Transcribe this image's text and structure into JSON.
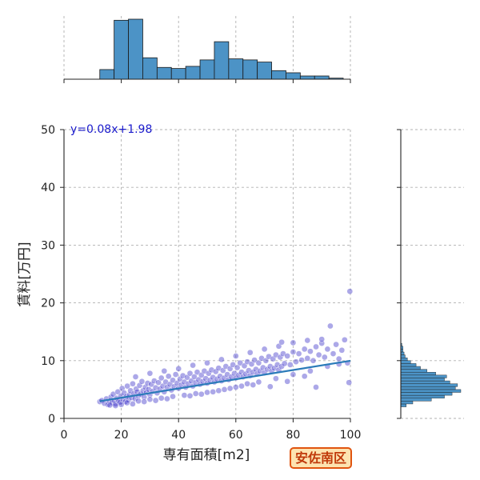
{
  "chart_data": {
    "type": "scatter",
    "xlabel": "専有面積[m2]",
    "ylabel": "賃料[万円]",
    "xlim": [
      0,
      100
    ],
    "ylim": [
      0,
      50
    ],
    "xticks": [
      0,
      20,
      40,
      60,
      80,
      100
    ],
    "yticks": [
      0,
      10,
      20,
      30,
      40,
      50
    ],
    "grid": true,
    "point_color": "#3a2fc8",
    "regression": {
      "label": "y=0.08x+1.98",
      "slope": 0.08,
      "intercept": 1.98,
      "x_range": [
        12.5,
        100
      ],
      "color": "#2b7bb9",
      "label_color": "#1a1acc"
    },
    "points": [
      [
        12.5,
        2.9
      ],
      [
        13.2,
        3.1
      ],
      [
        14.1,
        2.6
      ],
      [
        14.8,
        3.4
      ],
      [
        15.3,
        2.4
      ],
      [
        15.9,
        3.0
      ],
      [
        16.4,
        3.7
      ],
      [
        16.8,
        2.7
      ],
      [
        17.2,
        4.2
      ],
      [
        17.6,
        3.1
      ],
      [
        18.0,
        2.5
      ],
      [
        18.4,
        3.5
      ],
      [
        18.8,
        4.6
      ],
      [
        19.1,
        3.0
      ],
      [
        19.5,
        2.8
      ],
      [
        19.9,
        3.9
      ],
      [
        20.3,
        5.2
      ],
      [
        20.6,
        3.3
      ],
      [
        21.0,
        4.4
      ],
      [
        21.4,
        2.9
      ],
      [
        21.8,
        3.8
      ],
      [
        22.1,
        5.6
      ],
      [
        22.5,
        3.2
      ],
      [
        22.9,
        4.1
      ],
      [
        23.2,
        4.8
      ],
      [
        23.6,
        3.6
      ],
      [
        24.0,
        6.0
      ],
      [
        24.4,
        4.3
      ],
      [
        24.8,
        3.4
      ],
      [
        25.2,
        5.1
      ],
      [
        25.6,
        4.6
      ],
      [
        26.0,
        3.9
      ],
      [
        26.4,
        5.7
      ],
      [
        26.8,
        4.2
      ],
      [
        27.2,
        6.4
      ],
      [
        27.6,
        4.8
      ],
      [
        28.0,
        3.7
      ],
      [
        28.4,
        5.4
      ],
      [
        28.8,
        4.5
      ],
      [
        29.2,
        6.1
      ],
      [
        29.6,
        5.0
      ],
      [
        30.0,
        4.1
      ],
      [
        30.5,
        5.9
      ],
      [
        31.0,
        4.7
      ],
      [
        31.5,
        6.5
      ],
      [
        32.0,
        5.3
      ],
      [
        32.5,
        4.4
      ],
      [
        33.0,
        6.2
      ],
      [
        33.5,
        5.1
      ],
      [
        34.0,
        7.0
      ],
      [
        34.5,
        5.6
      ],
      [
        35.0,
        4.6
      ],
      [
        35.5,
        6.3
      ],
      [
        36.0,
        5.4
      ],
      [
        36.5,
        7.3
      ],
      [
        37.0,
        5.9
      ],
      [
        37.5,
        4.9
      ],
      [
        38.0,
        6.6
      ],
      [
        38.5,
        5.5
      ],
      [
        39.0,
        7.6
      ],
      [
        39.5,
        6.1
      ],
      [
        40.0,
        5.2
      ],
      [
        40.5,
        6.8
      ],
      [
        41.0,
        5.8
      ],
      [
        41.5,
        7.4
      ],
      [
        42.0,
        6.3
      ],
      [
        42.5,
        5.4
      ],
      [
        43.0,
        7.1
      ],
      [
        43.5,
        6.0
      ],
      [
        44.0,
        7.8
      ],
      [
        44.5,
        6.5
      ],
      [
        45.0,
        5.6
      ],
      [
        45.5,
        7.2
      ],
      [
        46.0,
        6.2
      ],
      [
        46.5,
        8.0
      ],
      [
        47.0,
        6.7
      ],
      [
        47.5,
        5.9
      ],
      [
        48.0,
        7.5
      ],
      [
        48.5,
        6.4
      ],
      [
        49.0,
        8.2
      ],
      [
        49.5,
        6.9
      ],
      [
        50.0,
        6.1
      ],
      [
        50.5,
        7.8
      ],
      [
        51.0,
        6.6
      ],
      [
        51.5,
        8.4
      ],
      [
        52.0,
        7.1
      ],
      [
        52.5,
        6.3
      ],
      [
        53.0,
        8.1
      ],
      [
        53.5,
        6.8
      ],
      [
        54.0,
        8.7
      ],
      [
        54.5,
        7.3
      ],
      [
        55.0,
        6.5
      ],
      [
        55.5,
        8.3
      ],
      [
        56.0,
        7.0
      ],
      [
        56.5,
        9.0
      ],
      [
        57.0,
        7.6
      ],
      [
        57.5,
        6.7
      ],
      [
        58.0,
        8.6
      ],
      [
        58.5,
        7.2
      ],
      [
        59.0,
        9.3
      ],
      [
        59.5,
        7.8
      ],
      [
        60.0,
        7.0
      ],
      [
        60.5,
        8.8
      ],
      [
        61.0,
        7.5
      ],
      [
        61.5,
        9.6
      ],
      [
        62.0,
        8.0
      ],
      [
        62.5,
        7.2
      ],
      [
        63.0,
        9.1
      ],
      [
        63.5,
        7.7
      ],
      [
        64.0,
        9.8
      ],
      [
        64.5,
        8.3
      ],
      [
        65.0,
        7.4
      ],
      [
        65.5,
        9.4
      ],
      [
        66.0,
        8.0
      ],
      [
        66.5,
        10.1
      ],
      [
        67.0,
        8.5
      ],
      [
        67.5,
        7.7
      ],
      [
        68.0,
        9.6
      ],
      [
        68.5,
        8.2
      ],
      [
        69.0,
        10.4
      ],
      [
        69.5,
        8.8
      ],
      [
        70.0,
        7.9
      ],
      [
        70.5,
        10.0
      ],
      [
        71.0,
        8.5
      ],
      [
        71.5,
        10.7
      ],
      [
        72.0,
        9.0
      ],
      [
        72.5,
        8.2
      ],
      [
        73.0,
        10.3
      ],
      [
        73.5,
        8.7
      ],
      [
        74.0,
        11.0
      ],
      [
        74.5,
        9.3
      ],
      [
        75.0,
        8.4
      ],
      [
        75.5,
        10.6
      ],
      [
        76.0,
        9.0
      ],
      [
        76.5,
        11.2
      ],
      [
        77.0,
        9.5
      ],
      [
        78.0,
        10.8
      ],
      [
        79.0,
        9.3
      ],
      [
        80.0,
        11.5
      ],
      [
        81.0,
        9.8
      ],
      [
        82.0,
        11.2
      ],
      [
        83.0,
        10.1
      ],
      [
        84.0,
        12.0
      ],
      [
        85.0,
        10.4
      ],
      [
        86.0,
        11.6
      ],
      [
        87.0,
        10.0
      ],
      [
        88.0,
        12.4
      ],
      [
        89.0,
        11.0
      ],
      [
        90.0,
        13.0
      ],
      [
        91.0,
        10.6
      ],
      [
        92.0,
        12.0
      ],
      [
        93.0,
        16.0
      ],
      [
        94.0,
        11.2
      ],
      [
        95.0,
        12.8
      ],
      [
        96.0,
        10.3
      ],
      [
        97.0,
        11.8
      ],
      [
        98.0,
        13.6
      ],
      [
        99.0,
        9.6
      ],
      [
        99.5,
        6.2
      ],
      [
        99.8,
        22.0
      ],
      [
        25.0,
        7.2
      ],
      [
        30.0,
        7.8
      ],
      [
        35.0,
        8.2
      ],
      [
        40.0,
        8.6
      ],
      [
        45.0,
        9.2
      ],
      [
        50.0,
        9.6
      ],
      [
        55.0,
        10.2
      ],
      [
        60.0,
        10.8
      ],
      [
        65.0,
        11.4
      ],
      [
        70.0,
        12.0
      ],
      [
        75.0,
        12.5
      ],
      [
        80.0,
        13.1
      ],
      [
        85.0,
        13.5
      ],
      [
        90.0,
        13.7
      ],
      [
        72.0,
        5.5
      ],
      [
        78.0,
        6.4
      ],
      [
        84.0,
        7.3
      ],
      [
        88.0,
        5.4
      ],
      [
        66.0,
        5.8
      ],
      [
        62.0,
        5.6
      ],
      [
        58.0,
        5.2
      ],
      [
        54.0,
        4.8
      ],
      [
        50.0,
        4.5
      ],
      [
        46.0,
        4.3
      ],
      [
        42.0,
        4.0
      ],
      [
        38.0,
        3.8
      ],
      [
        34.0,
        3.5
      ],
      [
        30.0,
        3.3
      ],
      [
        26.0,
        3.0
      ],
      [
        22.0,
        2.7
      ],
      [
        20.0,
        2.4
      ],
      [
        18.0,
        2.2
      ],
      [
        16.0,
        2.3
      ],
      [
        24.0,
        2.5
      ],
      [
        28.0,
        2.9
      ],
      [
        32.0,
        3.1
      ],
      [
        36.0,
        3.4
      ],
      [
        44.0,
        3.9
      ],
      [
        48.0,
        4.2
      ],
      [
        52.0,
        4.6
      ],
      [
        56.0,
        5.0
      ],
      [
        60.0,
        5.4
      ],
      [
        64.0,
        6.0
      ],
      [
        68.0,
        6.3
      ],
      [
        74.0,
        6.9
      ],
      [
        80.0,
        7.6
      ],
      [
        86.0,
        8.2
      ],
      [
        92.0,
        9.0
      ],
      [
        96.0,
        9.4
      ],
      [
        76.0,
        13.2
      ]
    ],
    "top_histogram": {
      "bin_width": 5,
      "bins": [
        {
          "x0": 12.5,
          "count": 9
        },
        {
          "x0": 17.5,
          "count": 55
        },
        {
          "x0": 22.5,
          "count": 56
        },
        {
          "x0": 27.5,
          "count": 20
        },
        {
          "x0": 32.5,
          "count": 11
        },
        {
          "x0": 37.5,
          "count": 10
        },
        {
          "x0": 42.5,
          "count": 12
        },
        {
          "x0": 47.5,
          "count": 18
        },
        {
          "x0": 52.5,
          "count": 35
        },
        {
          "x0": 57.5,
          "count": 19
        },
        {
          "x0": 62.5,
          "count": 18
        },
        {
          "x0": 67.5,
          "count": 16
        },
        {
          "x0": 72.5,
          "count": 8
        },
        {
          "x0": 77.5,
          "count": 6
        },
        {
          "x0": 82.5,
          "count": 3
        },
        {
          "x0": 87.5,
          "count": 3
        },
        {
          "x0": 92.5,
          "count": 1
        }
      ]
    },
    "right_histogram": {
      "bin_height": 0.5,
      "bins": [
        {
          "y0": 2.0,
          "count": 5
        },
        {
          "y0": 2.5,
          "count": 11
        },
        {
          "y0": 3.0,
          "count": 28
        },
        {
          "y0": 3.5,
          "count": 40
        },
        {
          "y0": 4.0,
          "count": 47
        },
        {
          "y0": 4.5,
          "count": 55
        },
        {
          "y0": 5.0,
          "count": 50
        },
        {
          "y0": 5.5,
          "count": 52
        },
        {
          "y0": 6.0,
          "count": 45
        },
        {
          "y0": 6.5,
          "count": 40
        },
        {
          "y0": 7.0,
          "count": 42
        },
        {
          "y0": 7.5,
          "count": 32
        },
        {
          "y0": 8.0,
          "count": 24
        },
        {
          "y0": 8.5,
          "count": 18
        },
        {
          "y0": 9.0,
          "count": 14
        },
        {
          "y0": 9.5,
          "count": 9
        },
        {
          "y0": 10.0,
          "count": 6
        },
        {
          "y0": 10.5,
          "count": 4
        },
        {
          "y0": 11.0,
          "count": 3
        },
        {
          "y0": 11.5,
          "count": 2
        },
        {
          "y0": 12.0,
          "count": 2
        },
        {
          "y0": 12.5,
          "count": 1
        }
      ]
    },
    "histogram_color": "#4c93c6"
  },
  "badge": {
    "label": "安佐南区"
  }
}
